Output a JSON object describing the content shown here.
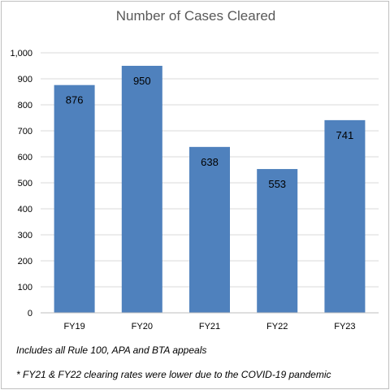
{
  "chart_data": {
    "type": "bar",
    "title": "Number of Cases Cleared",
    "categories": [
      "FY19",
      "FY20",
      "FY21",
      "FY22",
      "FY23"
    ],
    "values": [
      876,
      950,
      638,
      553,
      741
    ],
    "data_labels": [
      "876",
      "950",
      "638",
      "553",
      "741"
    ],
    "ylim": [
      0,
      1000
    ],
    "yticks": [
      0,
      100,
      200,
      300,
      400,
      500,
      600,
      700,
      800,
      900,
      1000
    ],
    "ytick_labels": [
      "0",
      "100",
      "200",
      "300",
      "400",
      "500",
      "600",
      "700",
      "800",
      "900",
      "1,000"
    ],
    "grid": true,
    "legend": "none",
    "bar_color": "#4f81bd"
  },
  "notes": {
    "line1": "Includes all Rule 100, APA and BTA appeals",
    "line2": "* FY21 & FY22 clearing rates were lower due to the COVID-19 pandemic"
  }
}
